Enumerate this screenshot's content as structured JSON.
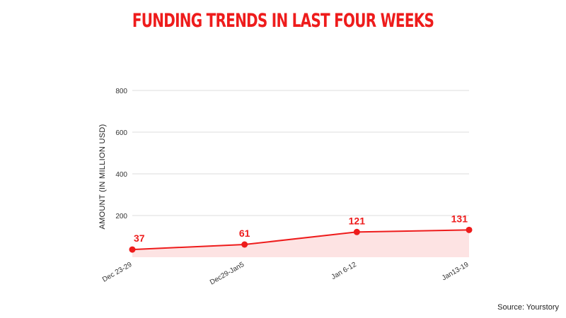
{
  "title": "FUNDING TRENDS IN LAST FOUR WEEKS",
  "source": "Source: Yourstory",
  "colors": {
    "accent": "#ee1c1c",
    "fill": "#fde3e3",
    "grid": "#dddddd"
  },
  "chart_data": {
    "type": "area",
    "title": "FUNDING TRENDS IN LAST FOUR WEEKS",
    "ylabel": "AMOUNT (IN MILLION USD)",
    "xlabel": "",
    "categories": [
      "Dec 23-29",
      "Dec29-Jan5",
      "Jan 6-12",
      "Jan13-19"
    ],
    "series": [
      {
        "values": [
          37,
          61,
          121,
          131
        ]
      }
    ],
    "data_labels": [
      "37",
      "61",
      "121",
      "131"
    ],
    "ylim": [
      0,
      800
    ],
    "yticks": [
      "200",
      "400",
      "600",
      "800"
    ],
    "grid": true,
    "legend": "none"
  }
}
